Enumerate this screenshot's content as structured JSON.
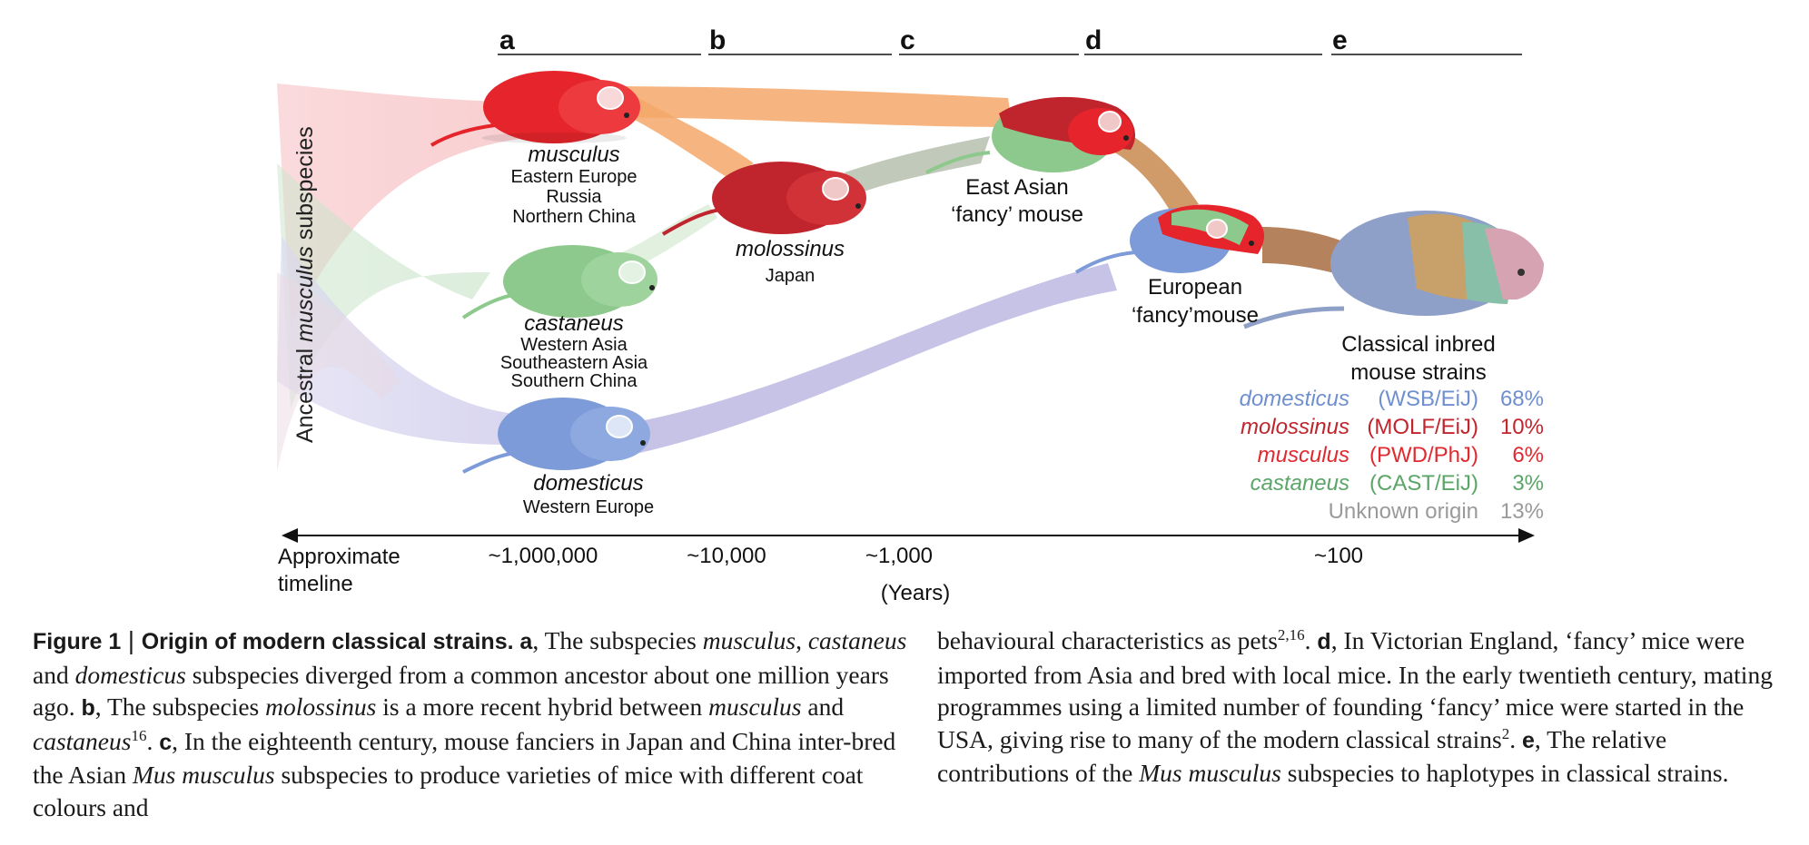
{
  "panels": [
    "a",
    "b",
    "c",
    "d",
    "e"
  ],
  "side_label": {
    "pre": "Ancestral ",
    "italic": "musculus",
    "post": " subspecies"
  },
  "mice": {
    "musculus": {
      "name": "musculus",
      "regions": [
        "Eastern Europe",
        "Russia",
        "Northern China"
      ]
    },
    "castaneus": {
      "name": "castaneus",
      "regions": [
        "Western Asia",
        "Southeastern Asia",
        "Southern China"
      ]
    },
    "domesticus": {
      "name": "domesticus",
      "regions": [
        "Western Europe"
      ]
    },
    "molossinus": {
      "name": "molossinus",
      "regions": [
        "Japan"
      ]
    },
    "east_asian": {
      "lines": [
        "East Asian",
        "‘fancy’ mouse"
      ]
    },
    "european": {
      "lines": [
        "European",
        "‘fancy’mouse"
      ]
    },
    "classical": {
      "lines": [
        "Classical inbred",
        "mouse strains"
      ]
    }
  },
  "contributions": [
    {
      "name": "domesticus",
      "strain": "(WSB/EiJ)",
      "pct": "68%",
      "color": "#6f8fcf",
      "italic": true
    },
    {
      "name": "molossinus",
      "strain": "(MOLF/EiJ)",
      "pct": "10%",
      "color": "#c0242c",
      "italic": true
    },
    {
      "name": "musculus",
      "strain": "(PWD/PhJ)",
      "pct": "6%",
      "color": "#e02a30",
      "italic": true
    },
    {
      "name": "castaneus",
      "strain": "(CAST/EiJ)",
      "pct": "3%",
      "color": "#5aa567",
      "italic": true
    },
    {
      "name": "Unknown origin",
      "strain": "",
      "pct": "13%",
      "color": "#9a9a9a",
      "italic": false
    }
  ],
  "timeline": {
    "label": [
      "Approximate",
      "timeline"
    ],
    "ticks": [
      "~1,000,000",
      "~10,000",
      "~1,000",
      "~100"
    ],
    "unit": "(Years)"
  },
  "caption": {
    "figure_label": "Figure 1",
    "title": "Origin of modern classical strains.",
    "left": [
      {
        "t": "b",
        "v": "a"
      },
      {
        "t": "n",
        "v": ", The subspecies "
      },
      {
        "t": "i",
        "v": "musculus"
      },
      {
        "t": "n",
        "v": ", "
      },
      {
        "t": "i",
        "v": "castaneus"
      },
      {
        "t": "n",
        "v": " and "
      },
      {
        "t": "i",
        "v": "domesticus"
      },
      {
        "t": "n",
        "v": " subspecies diverged from a common ancestor about one million years ago. "
      },
      {
        "t": "b",
        "v": "b"
      },
      {
        "t": "n",
        "v": ", The subspecies "
      },
      {
        "t": "i",
        "v": "molossinus"
      },
      {
        "t": "n",
        "v": " is a more recent hybrid between "
      },
      {
        "t": "i",
        "v": "musculus"
      },
      {
        "t": "n",
        "v": " and "
      },
      {
        "t": "i",
        "v": "castaneus"
      },
      {
        "t": "s",
        "v": "16"
      },
      {
        "t": "n",
        "v": ". "
      },
      {
        "t": "b",
        "v": "c"
      },
      {
        "t": "n",
        "v": ", In the eighteenth century, mouse fanciers in Japan and China inter-bred the Asian "
      },
      {
        "t": "i",
        "v": "Mus musculus"
      },
      {
        "t": "n",
        "v": " subspecies to produce varieties of mice with different coat colours and"
      }
    ],
    "right": [
      {
        "t": "n",
        "v": "behavioural characteristics as pets"
      },
      {
        "t": "s",
        "v": "2,16"
      },
      {
        "t": "n",
        "v": ". "
      },
      {
        "t": "b",
        "v": "d"
      },
      {
        "t": "n",
        "v": ", In Victorian England, ‘fancy’ mice were imported from Asia and bred with local mice. In the early twentieth century, mating programmes using a limited number of founding ‘fancy’ mice were started in the USA, giving rise to many of the modern classical strains"
      },
      {
        "t": "s",
        "v": "2"
      },
      {
        "t": "n",
        "v": ". "
      },
      {
        "t": "b",
        "v": "e"
      },
      {
        "t": "n",
        "v": ", The relative contributions of the "
      },
      {
        "t": "i",
        "v": "Mus musculus"
      },
      {
        "t": "n",
        "v": " subspecies to haplotypes in classical strains."
      }
    ]
  },
  "colors": {
    "musculus": "#e5252b",
    "molossinus": "#c0242c",
    "castaneus": "#8dc98c",
    "domesticus": "#7d9bd8",
    "stream_orange": "#f5a86a",
    "stream_purple": "#bcb8e2",
    "stream_grey": "#b6bfae",
    "stream_brown": "#c88a4e"
  }
}
